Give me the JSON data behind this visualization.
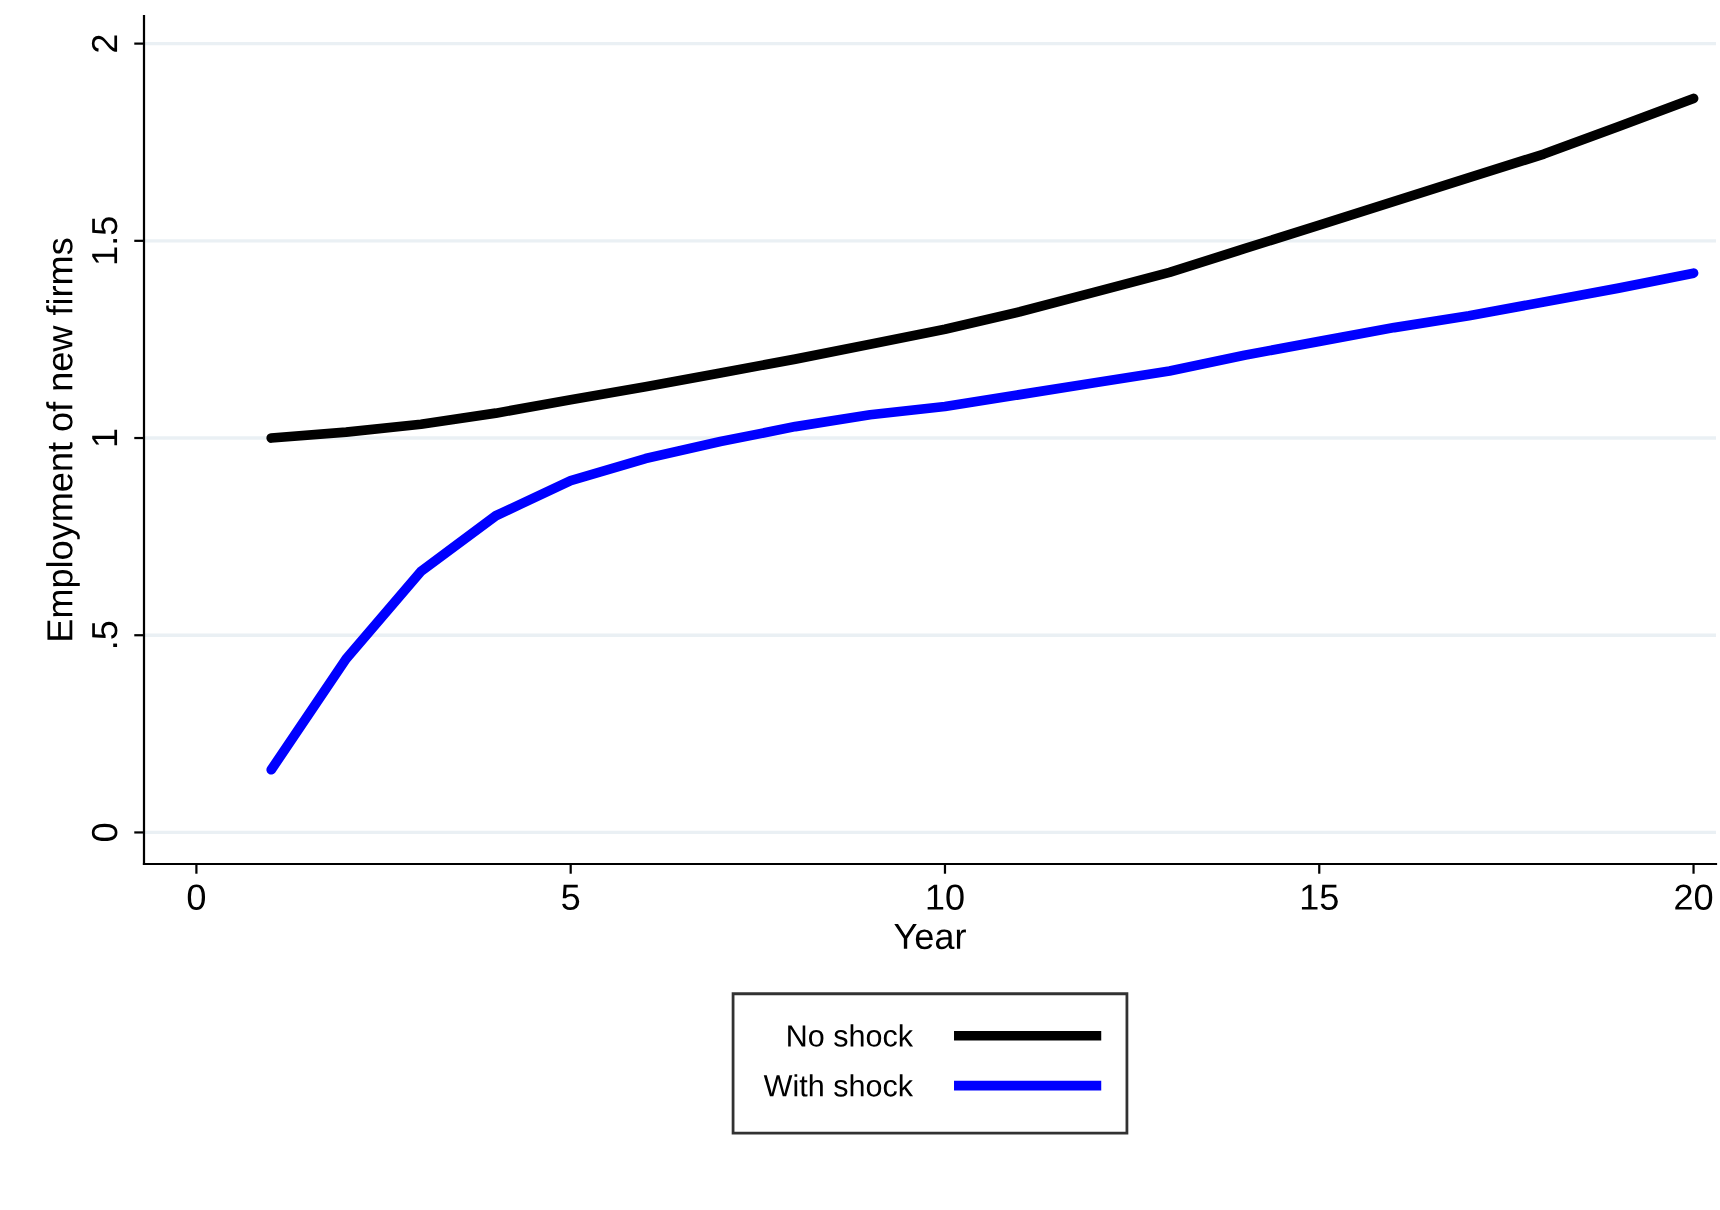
{
  "chart_data": {
    "type": "line",
    "xlabel": "Year",
    "ylabel": "Employment of new firms",
    "x": [
      1,
      2,
      3,
      4,
      5,
      6,
      7,
      8,
      9,
      10,
      11,
      12,
      13,
      14,
      15,
      16,
      17,
      18,
      19,
      20
    ],
    "series": [
      {
        "name": "No shock",
        "color": "#000000",
        "values": [
          1.0,
          1.015,
          1.035,
          1.063,
          1.097,
          1.13,
          1.165,
          1.2,
          1.238,
          1.276,
          1.32,
          1.37,
          1.42,
          1.48,
          1.54,
          1.6,
          1.66,
          1.72,
          1.79,
          1.861
        ]
      },
      {
        "name": "With shock",
        "color": "#0000ff",
        "values": [
          0.159,
          0.44,
          0.662,
          0.803,
          0.892,
          0.948,
          0.991,
          1.029,
          1.059,
          1.08,
          1.11,
          1.14,
          1.17,
          1.21,
          1.245,
          1.28,
          1.31,
          1.345,
          1.38,
          1.418
        ]
      }
    ],
    "xlim": [
      -0.7,
      20.3
    ],
    "ylim": [
      -0.08,
      2.07
    ],
    "xticks": [
      0,
      5,
      10,
      15,
      20
    ],
    "yticks": [
      0,
      {
        "value": 0.5,
        "label": ".5"
      },
      1,
      1.5,
      2
    ],
    "grid": "y",
    "legend": "bottom",
    "line_style": "solid",
    "marker": "none"
  }
}
